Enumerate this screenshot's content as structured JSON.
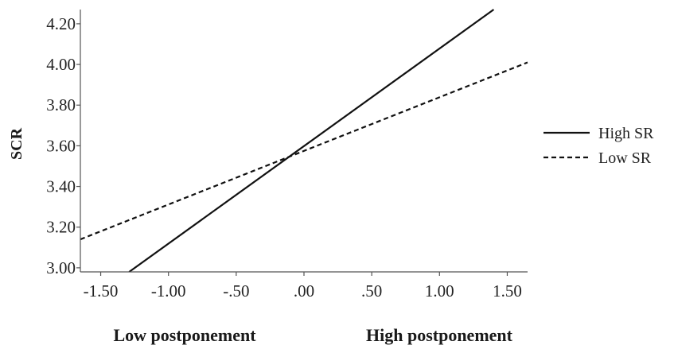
{
  "chart_data": {
    "type": "line",
    "title": "",
    "ylabel": "SCR",
    "xlabel_left": "Low postponement",
    "xlabel_right": "High postponement",
    "xlim": [
      -1.65,
      1.65
    ],
    "ylim": [
      2.98,
      4.27
    ],
    "x_ticks": [
      -1.5,
      -1.0,
      -0.5,
      0.0,
      0.5,
      1.0,
      1.5
    ],
    "x_tick_labels": [
      "-1.50",
      "-1.00",
      "-.50",
      ".00",
      ".50",
      "1.00",
      "1.50"
    ],
    "y_ticks": [
      3.0,
      3.2,
      3.4,
      3.6,
      3.8,
      4.0,
      4.2
    ],
    "y_tick_labels": [
      "3.00",
      "3.20",
      "3.40",
      "3.60",
      "3.80",
      "4.00",
      "4.20"
    ],
    "grid": false,
    "legend_position": "right",
    "series": [
      {
        "name": "High SR",
        "style": "solid",
        "color": "#111111",
        "x": [
          -1.29,
          1.4
        ],
        "y": [
          2.98,
          4.27
        ]
      },
      {
        "name": "Low SR",
        "style": "dashed",
        "color": "#111111",
        "x": [
          -1.65,
          1.65
        ],
        "y": [
          3.14,
          4.01
        ]
      }
    ]
  }
}
